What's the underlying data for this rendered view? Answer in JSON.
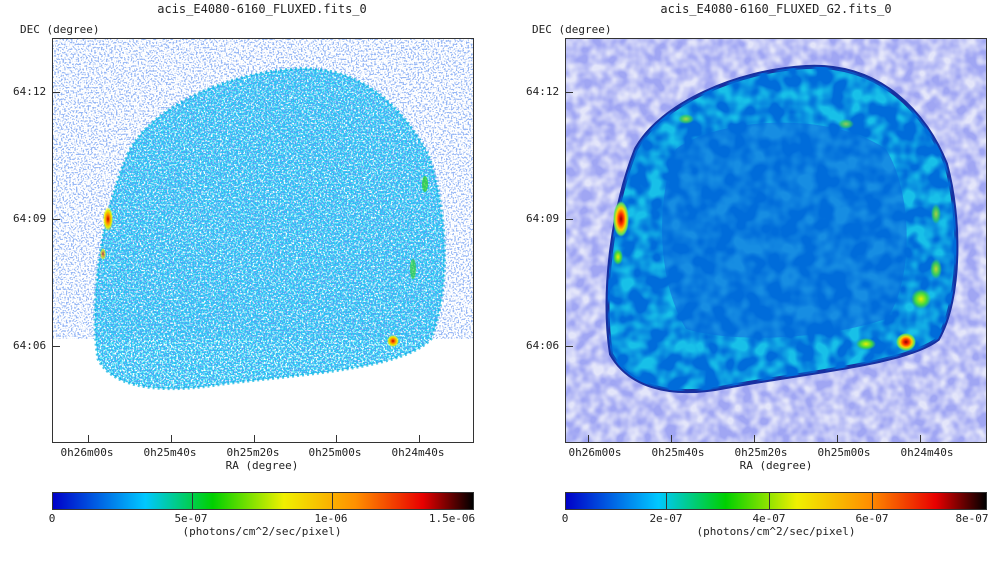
{
  "panels": [
    {
      "title": "acis_E4080-6160_FLUXED.fits_0",
      "y_label": "DEC (degree)",
      "x_label": "RA (degree)",
      "y_ticks": [
        "64:12",
        "64:09",
        "64:06"
      ],
      "x_ticks": [
        "0h26m00s",
        "0h25m40s",
        "0h25m20s",
        "0h25m00s",
        "0h24m40s"
      ],
      "colorbar": {
        "ticks": [
          "0",
          "5e-07",
          "1e-06",
          "1.5e-06"
        ],
        "units": "(photons/cm^2/sec/pixel)",
        "colormap": [
          "#0000c8",
          "#00c8ff",
          "#00d000",
          "#f0f000",
          "#ff9000",
          "#e80000",
          "#000000"
        ]
      }
    },
    {
      "title": "acis_E4080-6160_FLUXED_G2.fits_0",
      "y_label": "DEC (degree)",
      "x_label": "RA (degree)",
      "y_ticks": [
        "64:12",
        "64:09",
        "64:06"
      ],
      "x_ticks": [
        "0h26m00s",
        "0h25m40s",
        "0h25m20s",
        "0h25m00s",
        "0h24m40s"
      ],
      "colorbar": {
        "ticks": [
          "0",
          "2e-07",
          "4e-07",
          "6e-07",
          "8e-07"
        ],
        "units": "(photons/cm^2/sec/pixel)",
        "colormap": [
          "#0000c8",
          "#00c8ff",
          "#00d000",
          "#f0f000",
          "#ff9000",
          "#e80000",
          "#000000"
        ]
      }
    }
  ],
  "colors": {
    "background": "#ffffff",
    "frame": "#333333",
    "remnant_low": "#2858d8",
    "remnant_mid": "#00b8e8",
    "hotspot": "#e00000"
  }
}
